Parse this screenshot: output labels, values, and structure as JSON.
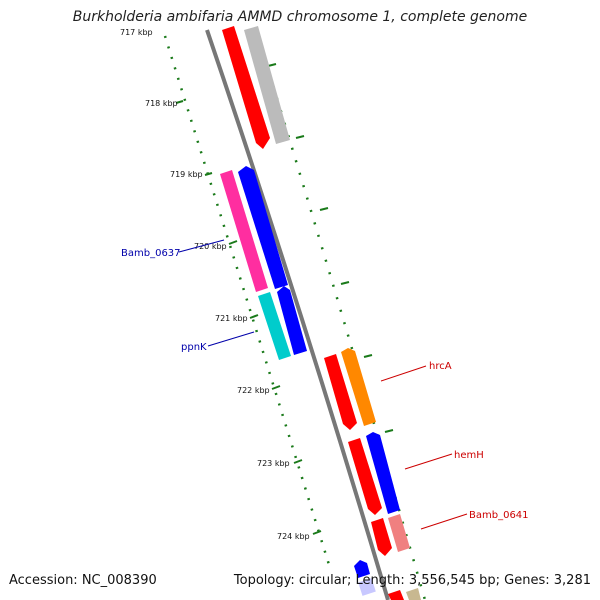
{
  "title": "Burkholderia ambifaria AMMD chromosome 1, complete genome",
  "footer": {
    "accession": "Accession: NC_008390",
    "topology": "Topology: circular; Length: 3,556,545 bp; Genes: 3,281"
  },
  "ruler": {
    "ticks": [
      "717 kbp",
      "718 kbp",
      "719 kbp",
      "720 kbp",
      "721 kbp",
      "722 kbp",
      "723 kbp",
      "724 kbp"
    ]
  },
  "gene_labels": [
    {
      "name": "Bamb_0637",
      "color": "#0000aa"
    },
    {
      "name": "ppnK",
      "color": "#0000aa"
    },
    {
      "name": "hrcA",
      "color": "#cc0000"
    },
    {
      "name": "hemH",
      "color": "#cc0000"
    },
    {
      "name": "Bamb_0641",
      "color": "#cc0000"
    }
  ],
  "colors": {
    "backbone": "#777777",
    "tick": "#1a7a1a",
    "red": "#ff0000",
    "gray": "#bbbbbb",
    "magenta": "#ff2ea0",
    "blue": "#0000ff",
    "cyan": "#00cccc",
    "orange": "#ff8800",
    "salmon": "#f08080",
    "khaki": "#c8b890",
    "lavender": "#c8c8ff"
  }
}
